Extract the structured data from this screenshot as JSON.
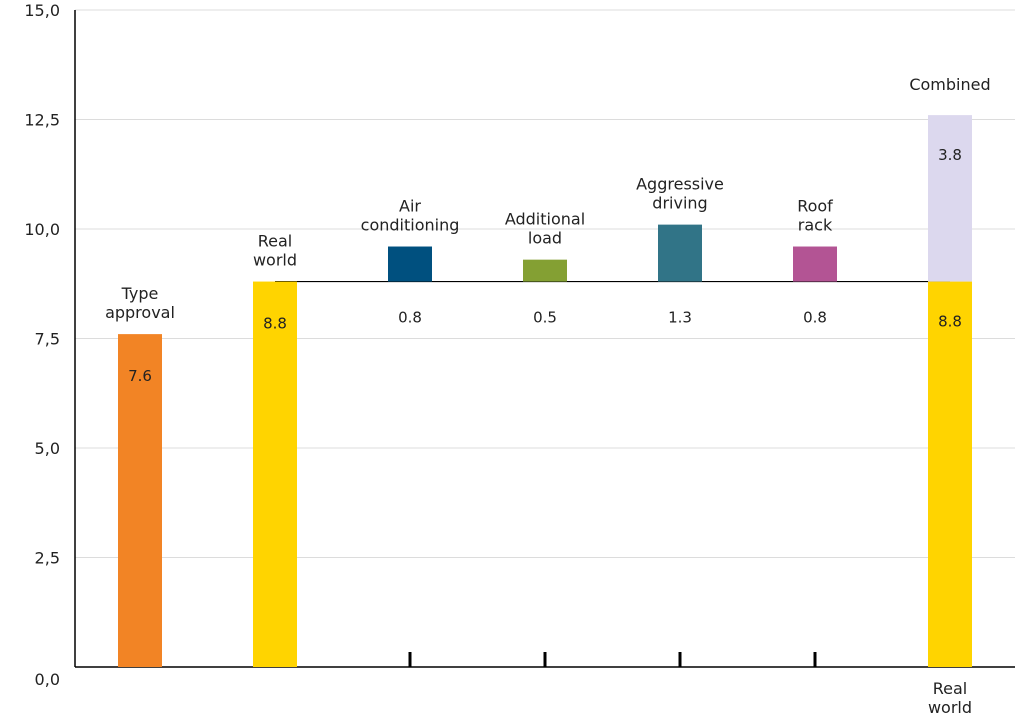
{
  "chart_data": {
    "type": "bar",
    "title": "",
    "xlabel": "",
    "ylabel": "",
    "ylim": [
      0,
      15
    ],
    "y_ticks": [
      "0,0",
      "2,5",
      "5,0",
      "7,5",
      "10,0",
      "12,5",
      "15,0"
    ],
    "grid": true,
    "baseline_value": 8.8,
    "bars": [
      {
        "id": "type-approval",
        "label": [
          "Type",
          "approval"
        ],
        "bottom": 0,
        "value": 7.6,
        "value_label": "7.6",
        "color": "#f28425"
      },
      {
        "id": "real-world",
        "label": [
          "Real",
          "world"
        ],
        "bottom": 0,
        "value": 8.8,
        "value_label": "8.8",
        "color": "#ffd400"
      },
      {
        "id": "air-conditioning",
        "label": [
          "Air",
          "conditioning"
        ],
        "bottom": 8.8,
        "value": 0.8,
        "value_label": "0.8",
        "color": "#00507f"
      },
      {
        "id": "additional-load",
        "label": [
          "Additional",
          "load"
        ],
        "bottom": 8.8,
        "value": 0.5,
        "value_label": "0.5",
        "color": "#84a033"
      },
      {
        "id": "aggressive-driving",
        "label": [
          "Aggressive",
          "driving"
        ],
        "bottom": 8.8,
        "value": 1.3,
        "value_label": "1.3",
        "color": "#317487"
      },
      {
        "id": "roof-rack",
        "label": [
          "Roof",
          "rack"
        ],
        "bottom": 8.8,
        "value": 0.8,
        "value_label": "0.8",
        "color": "#b35494"
      },
      {
        "id": "combined",
        "label": [
          "Combined"
        ],
        "stack": [
          {
            "id": "combined-real-world",
            "value": 8.8,
            "value_label": "8.8",
            "color": "#ffd400"
          },
          {
            "id": "combined-extra",
            "value": 3.8,
            "value_label": "3.8",
            "color": "#dcd8ee"
          }
        ],
        "bottom_label": [
          "Real",
          "world"
        ]
      }
    ]
  }
}
